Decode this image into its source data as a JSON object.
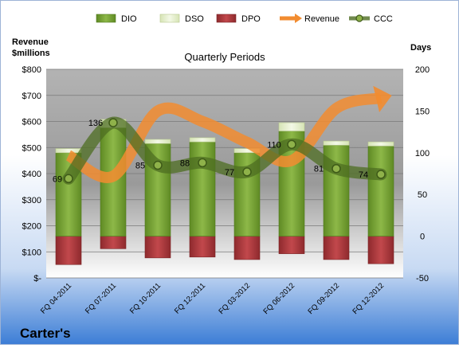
{
  "chart_data": {
    "type": "bar",
    "title": "Quarterly Periods",
    "company": "Carter's",
    "categories": [
      "FQ 04-2011",
      "FQ 07-2011",
      "FQ 10-2011",
      "FQ 12-2011",
      "FQ 03-2012",
      "FQ 06-2012",
      "FQ 09-2012",
      "FQ 12-2012"
    ],
    "left_axis": {
      "label_line1": "Revenue",
      "label_line2": "$millions",
      "ylim": [
        0,
        800
      ],
      "ticks": [
        0,
        100,
        200,
        300,
        400,
        500,
        600,
        700,
        800
      ],
      "tick_labels": [
        "$-",
        "$100",
        "$200",
        "$300",
        "$400",
        "$500",
        "$600",
        "$700",
        "$800"
      ]
    },
    "right_axis": {
      "label": "Days",
      "ylim": [
        -50,
        200
      ],
      "ticks": [
        -50,
        0,
        50,
        100,
        150,
        200
      ],
      "tick_labels": [
        "-50",
        "0",
        "50",
        "100",
        "150",
        "200"
      ]
    },
    "legend": {
      "placement": "top",
      "entries": [
        "DIO",
        "DSO",
        "DPO",
        "Revenue",
        "CCC"
      ]
    },
    "series": [
      {
        "name": "DIO",
        "type": "bar",
        "axis": "right",
        "values": [
          100,
          130,
          111,
          113,
          100,
          126,
          109,
          108
        ]
      },
      {
        "name": "DSO",
        "type": "bar-stacked-top",
        "axis": "right",
        "values": [
          5,
          10,
          5,
          5,
          5,
          10,
          5,
          5
        ]
      },
      {
        "name": "DPO",
        "type": "bar-negative",
        "axis": "right",
        "values": [
          -34,
          -15,
          -26,
          -25,
          -28,
          -21,
          -28,
          -33
        ]
      },
      {
        "name": "Revenue",
        "type": "arrow-line",
        "axis": "left",
        "values": [
          470,
          390,
          640,
          600,
          520,
          450,
          650,
          690
        ]
      },
      {
        "name": "CCC",
        "type": "line",
        "axis": "right",
        "values": [
          69,
          136,
          85,
          88,
          77,
          110,
          81,
          74
        ]
      }
    ],
    "ccc_labels": [
      "69",
      "136",
      "85",
      "88",
      "77",
      "110",
      "81",
      "74"
    ],
    "colors": {
      "dio": "#76a033",
      "dso": "#e6f0cc",
      "dpo": "#a5373a",
      "revenue": "#f28c30",
      "ccc": "#5a7a28",
      "title_bar": "#4b8ad8"
    }
  }
}
